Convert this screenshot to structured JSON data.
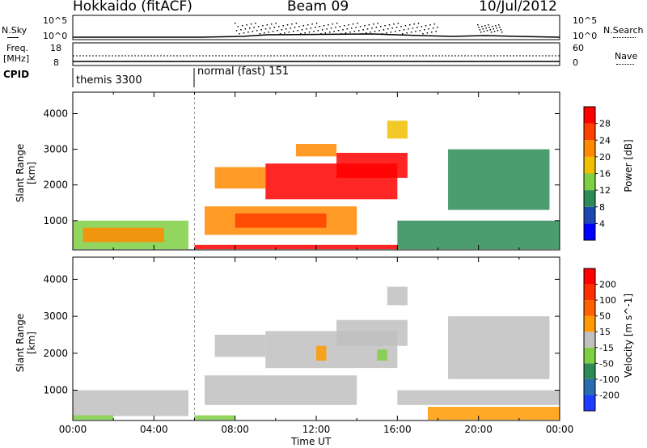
{
  "header": {
    "station": "Hokkaido (fitACF)",
    "beam": "Beam 09",
    "date": "10/Jul/2012"
  },
  "panels": {
    "nsky": {
      "label": "N.Sky",
      "ticks": [
        "10^5",
        "10^0"
      ],
      "right_ticks": [
        "10^5",
        "10^0"
      ],
      "right_label": "N.Search"
    },
    "freq": {
      "label_line1": "Freq.",
      "label_line2": "[MHz]",
      "ticks": [
        "18",
        "8"
      ],
      "right_ticks": [
        "60",
        "0"
      ],
      "right_label": "Nave"
    },
    "cpid": {
      "label": "CPID",
      "modes": [
        {
          "name": "themis 3300",
          "start_hour": 0
        },
        {
          "name": "normal (fast) 151",
          "start_hour": 6
        }
      ]
    }
  },
  "chart_data": [
    {
      "type": "heatmap",
      "name": "power-panel",
      "ylabel": "Slant Range [km]",
      "xlabel": "",
      "ylim": [
        180,
        4600
      ],
      "xlim": [
        0,
        24
      ],
      "y_ticks": [
        "1000",
        "2000",
        "3000",
        "4000"
      ],
      "colorbar": {
        "label": "Power [dB]",
        "ticks": [
          "28",
          "24",
          "20",
          "16",
          "12",
          "8",
          "4"
        ],
        "colors": [
          "#0000ff",
          "#1f47b0",
          "#2e8b57",
          "#7fcf44",
          "#f0c000",
          "#ff8a00",
          "#ff4000",
          "#ff0000"
        ]
      },
      "regions": [
        {
          "t0": 0.0,
          "t1": 5.7,
          "r0": 200,
          "r1": 1000,
          "level": 3
        },
        {
          "t0": 0.5,
          "t1": 4.5,
          "r0": 400,
          "r1": 800,
          "level": 5
        },
        {
          "t0": 6.5,
          "t1": 14.0,
          "r0": 600,
          "r1": 1400,
          "level": 5
        },
        {
          "t0": 8.0,
          "t1": 12.5,
          "r0": 800,
          "r1": 1200,
          "level": 6
        },
        {
          "t0": 9.5,
          "t1": 16.0,
          "r0": 1600,
          "r1": 2600,
          "level": 7
        },
        {
          "t0": 7.0,
          "t1": 9.5,
          "r0": 1900,
          "r1": 2500,
          "level": 5
        },
        {
          "t0": 13.0,
          "t1": 16.5,
          "r0": 2200,
          "r1": 2900,
          "level": 7
        },
        {
          "t0": 11.0,
          "t1": 13.0,
          "r0": 2800,
          "r1": 3150,
          "level": 5
        },
        {
          "t0": 15.5,
          "t1": 16.5,
          "r0": 3300,
          "r1": 3800,
          "level": 4
        },
        {
          "t0": 16.0,
          "t1": 24.0,
          "r0": 200,
          "r1": 1000,
          "level": 2
        },
        {
          "t0": 18.5,
          "t1": 23.5,
          "r0": 1300,
          "r1": 3000,
          "level": 2
        },
        {
          "t0": 6.0,
          "t1": 16.0,
          "r0": 200,
          "r1": 320,
          "level": 7
        }
      ]
    },
    {
      "type": "heatmap",
      "name": "velocity-panel",
      "ylabel": "Slant Range [km]",
      "xlabel": "Time UT",
      "ylim": [
        180,
        4600
      ],
      "xlim": [
        0,
        24
      ],
      "y_ticks": [
        "1000",
        "2000",
        "3000",
        "4000"
      ],
      "x_ticks": [
        "00:00",
        "04:00",
        "08:00",
        "12:00",
        "16:00",
        "20:00",
        "00:00"
      ],
      "colorbar": {
        "label": "Velocity [m s^-1]",
        "ticks": [
          "200",
          "100",
          "50",
          "15",
          "-15",
          "-50",
          "-100",
          "-200"
        ],
        "colors": [
          "#1e3cff",
          "#2a6cb0",
          "#2e8b57",
          "#7fcf44",
          "#c0c0c0",
          "#ff9a00",
          "#ff6000",
          "#ff3000",
          "#ff0000"
        ]
      },
      "regions": [
        {
          "t0": 0.0,
          "t1": 5.7,
          "r0": 300,
          "r1": 1000,
          "level": 4
        },
        {
          "t0": 6.5,
          "t1": 14.0,
          "r0": 600,
          "r1": 1400,
          "level": 4
        },
        {
          "t0": 9.5,
          "t1": 16.0,
          "r0": 1600,
          "r1": 2600,
          "level": 4
        },
        {
          "t0": 7.0,
          "t1": 9.5,
          "r0": 1900,
          "r1": 2500,
          "level": 4
        },
        {
          "t0": 13.0,
          "t1": 16.5,
          "r0": 2200,
          "r1": 2900,
          "level": 4
        },
        {
          "t0": 15.5,
          "t1": 16.5,
          "r0": 3300,
          "r1": 3800,
          "level": 4
        },
        {
          "t0": 16.0,
          "t1": 24.0,
          "r0": 600,
          "r1": 1000,
          "level": 4
        },
        {
          "t0": 17.5,
          "t1": 24.0,
          "r0": 200,
          "r1": 550,
          "level": 5
        },
        {
          "t0": 18.5,
          "t1": 23.5,
          "r0": 1300,
          "r1": 3000,
          "level": 4
        },
        {
          "t0": 0.0,
          "t1": 2.0,
          "r0": 200,
          "r1": 320,
          "level": 3
        },
        {
          "t0": 6.0,
          "t1": 8.0,
          "r0": 200,
          "r1": 320,
          "level": 3
        },
        {
          "t0": 12.0,
          "t1": 12.5,
          "r0": 1800,
          "r1": 2200,
          "level": 5
        },
        {
          "t0": 15.0,
          "t1": 15.5,
          "r0": 1800,
          "r1": 2100,
          "level": 3
        }
      ]
    }
  ]
}
